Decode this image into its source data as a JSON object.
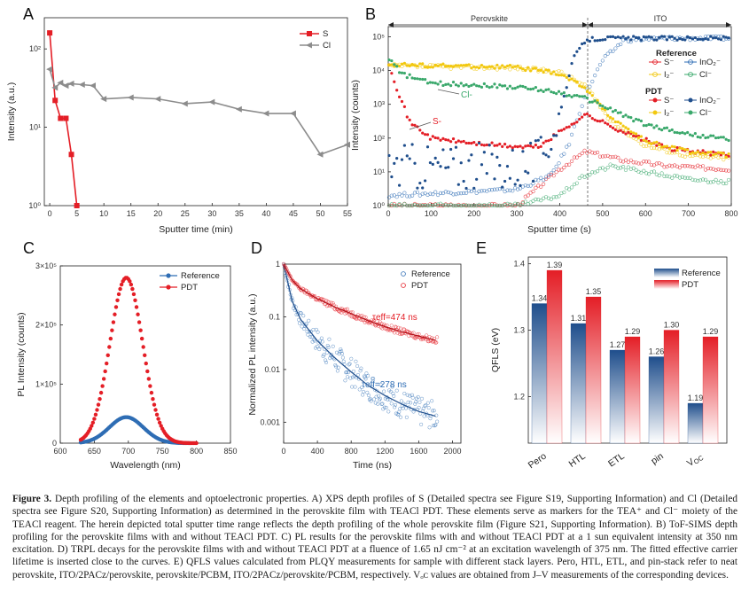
{
  "panels": {
    "a": {
      "letter": "A",
      "xlabel": "Sputter time (min)",
      "ylabel": "Intensity (a.u.)"
    },
    "b": {
      "letter": "B",
      "xlabel": "Sputter time (s)",
      "ylabel": "Intensity (counts)",
      "region_left": "Perovskite",
      "region_right": "ITO",
      "legend_ref_title": "Reference",
      "legend_pdt_title": "PDT",
      "legend_items": [
        "S⁻",
        "InO₂⁻",
        "I₂⁻",
        "Cl⁻"
      ],
      "ann_cl": "Cl-",
      "ann_s": "S-"
    },
    "c": {
      "letter": "C",
      "xlabel": "Wavelength (nm)",
      "ylabel": "PL Intensity (counts)"
    },
    "d": {
      "letter": "D",
      "xlabel": "Time (ns)",
      "ylabel": "Normalized PL intensity (a.u.)",
      "ann_pdt": "τeff=474 ns",
      "ann_ref": "τeff=278 ns"
    },
    "e": {
      "letter": "E",
      "ylabel": "QFLS (eV)"
    }
  },
  "colors": {
    "red": "#e41e26",
    "blue": "#2e6db4",
    "gray": "#8c8c8c",
    "yellow": "#f2c80f",
    "green": "#3aa86b",
    "navy": "#1f4e8c"
  },
  "chart_data": [
    {
      "type": "line",
      "panel": "A",
      "xlabel": "Sputter time (min)",
      "ylabel": "Intensity (a.u.)",
      "xlim": [
        -1,
        55
      ],
      "ylim": [
        1,
        250
      ],
      "yscale": "log",
      "xticks": [
        "0",
        "5",
        "10",
        "15",
        "20",
        "25",
        "30",
        "35",
        "40",
        "45",
        "50",
        "55"
      ],
      "yticks": [
        "10⁰",
        "10¹",
        "10²"
      ],
      "legend_position": "top-right",
      "series": [
        {
          "name": "S",
          "color": "#e41e26",
          "marker": "square",
          "x": [
            0,
            1,
            2,
            3,
            4,
            5
          ],
          "y": [
            160,
            22,
            13,
            13,
            4.5,
            1
          ]
        },
        {
          "name": "Cl",
          "color": "#8c8c8c",
          "marker": "triangle-left",
          "x": [
            0,
            1,
            2,
            3,
            4,
            6,
            8,
            10,
            15,
            20,
            25,
            30,
            35,
            40,
            45,
            50,
            55
          ],
          "y": [
            55,
            32,
            37,
            34,
            36,
            35,
            34,
            23,
            24,
            23,
            20,
            21,
            17,
            15,
            15,
            4.5,
            6
          ]
        }
      ]
    },
    {
      "type": "line",
      "panel": "B",
      "xlabel": "Sputter time (s)",
      "ylabel": "Intensity (counts)",
      "xlim": [
        0,
        800
      ],
      "ylim": [
        1,
        200000
      ],
      "yscale": "log",
      "xticks": [
        "0",
        "100",
        "200",
        "300",
        "400",
        "500",
        "600",
        "700",
        "800"
      ],
      "yticks": [
        "10⁰",
        "10¹",
        "10²",
        "10³",
        "10⁴",
        "10⁵"
      ],
      "legend_position": "top-right",
      "series": [
        {
          "name": "S⁻ (Reference)",
          "color": "#e41e26",
          "style": "open",
          "x": [
            0,
            100,
            200,
            300,
            400,
            460,
            550,
            650,
            800
          ],
          "y": [
            1,
            1,
            1,
            1,
            12,
            40,
            22,
            15,
            12
          ]
        },
        {
          "name": "InO₂⁻ (Reference)",
          "color": "#2e6db4",
          "style": "open",
          "x": [
            0,
            300,
            380,
            420,
            460,
            500,
            550,
            650,
            800
          ],
          "y": [
            2,
            3,
            8,
            60,
            2000,
            20000,
            80000,
            90000,
            90000
          ]
        },
        {
          "name": "I₂⁻ (Reference)",
          "color": "#f2c80f",
          "style": "open",
          "x": [
            0,
            100,
            200,
            300,
            400,
            460,
            520,
            600,
            700,
            800
          ],
          "y": [
            14000,
            13000,
            12500,
            12000,
            9000,
            3500,
            300,
            60,
            30,
            25
          ]
        },
        {
          "name": "Cl⁻ (Reference)",
          "color": "#3aa86b",
          "style": "open",
          "x": [
            0,
            100,
            200,
            300,
            400,
            460,
            520,
            600,
            700,
            800
          ],
          "y": [
            1,
            1,
            1,
            1,
            2,
            8,
            15,
            10,
            6,
            5
          ]
        },
        {
          "name": "S⁻ (PDT)",
          "color": "#e41e26",
          "style": "filled",
          "x": [
            0,
            20,
            50,
            100,
            200,
            300,
            350,
            400,
            460,
            550,
            650,
            800
          ],
          "y": [
            20000,
            3000,
            300,
            100,
            70,
            55,
            55,
            150,
            500,
            150,
            50,
            30
          ]
        },
        {
          "name": "InO₂⁻ (PDT)",
          "color": "#1f4e8c",
          "style": "filled",
          "x": [
            0,
            100,
            200,
            300,
            350,
            400,
            430,
            460,
            500,
            800
          ],
          "y": [
            15,
            15,
            15,
            15,
            20,
            500,
            20000,
            80000,
            90000,
            90000
          ]
        },
        {
          "name": "I₂⁻ (PDT)",
          "color": "#f2c80f",
          "style": "filled",
          "x": [
            0,
            100,
            200,
            300,
            400,
            460,
            520,
            600,
            700,
            800
          ],
          "y": [
            15000,
            14000,
            13500,
            12500,
            8000,
            3000,
            400,
            80,
            40,
            30
          ]
        },
        {
          "name": "Cl⁻ (PDT)",
          "color": "#3aa86b",
          "style": "filled",
          "x": [
            0,
            30,
            100,
            200,
            300,
            380,
            460,
            520,
            600,
            700,
            800
          ],
          "y": [
            25000,
            8000,
            4200,
            3800,
            3200,
            2500,
            1500,
            700,
            250,
            130,
            90
          ]
        }
      ]
    },
    {
      "type": "line",
      "panel": "C",
      "xlabel": "Wavelength (nm)",
      "ylabel": "PL Intensity (counts)",
      "xlim": [
        600,
        850
      ],
      "ylim": [
        0,
        300000
      ],
      "xticks": [
        "600",
        "650",
        "700",
        "750",
        "800",
        "850"
      ],
      "yticks": [
        "0",
        "1×10⁵",
        "2×10⁵",
        "3×10⁵"
      ],
      "legend_position": "top-right",
      "series": [
        {
          "name": "Reference",
          "color": "#2e6db4",
          "peak_x": 697,
          "peak_y": 44000,
          "x_start": 630,
          "x_end": 790
        },
        {
          "name": "PDT",
          "color": "#e41e26",
          "peak_x": 697,
          "peak_y": 280000,
          "x_start": 630,
          "x_end": 800
        }
      ]
    },
    {
      "type": "scatter",
      "panel": "D",
      "xlabel": "Time (ns)",
      "ylabel": "Normalized PL intensity (a.u.)",
      "xlim": [
        0,
        2100
      ],
      "ylim": [
        0.0004,
        1
      ],
      "yscale": "log",
      "xticks": [
        "0",
        "400",
        "800",
        "1200",
        "1600",
        "2000"
      ],
      "yticks": [
        "0.001",
        "0.01",
        "0.1",
        "1"
      ],
      "legend_position": "top-right",
      "series": [
        {
          "name": "Reference",
          "color": "#2e6db4",
          "tau_eff_ns": 278,
          "x": [
            0,
            100,
            200,
            400,
            600,
            800,
            1000,
            1200,
            1400,
            1600,
            1800
          ],
          "y": [
            1,
            0.2,
            0.09,
            0.035,
            0.017,
            0.009,
            0.005,
            0.0032,
            0.0022,
            0.0016,
            0.0013
          ]
        },
        {
          "name": "PDT",
          "color": "#e41e26",
          "tau_eff_ns": 474,
          "x": [
            0,
            100,
            200,
            400,
            600,
            800,
            1000,
            1200,
            1400,
            1600,
            1800
          ],
          "y": [
            1,
            0.5,
            0.34,
            0.22,
            0.155,
            0.115,
            0.085,
            0.065,
            0.052,
            0.043,
            0.036
          ]
        }
      ]
    },
    {
      "type": "bar",
      "panel": "E",
      "ylabel": "QFLS (eV)",
      "ylim": [
        1.13,
        1.41
      ],
      "yticks": [
        "1.2",
        "1.3",
        "1.4"
      ],
      "categories": [
        "Pero",
        "HTL",
        "ETL",
        "pin",
        "V_OC"
      ],
      "legend_position": "top-right",
      "series": [
        {
          "name": "Reference",
          "color": "#2e6db4",
          "values": [
            1.34,
            1.31,
            1.27,
            1.26,
            1.19
          ]
        },
        {
          "name": "PDT",
          "color": "#e41e26",
          "values": [
            1.39,
            1.35,
            1.29,
            1.3,
            1.29
          ]
        }
      ]
    }
  ],
  "caption": {
    "label": "Figure 3.",
    "text": "Depth profiling of the elements and optoelectronic properties. A) XPS depth profiles of S (Detailed spectra see Figure S19, Supporting Information) and Cl (Detailed spectra see Figure S20, Supporting Information) as determined in the perovskite film with TEACl PDT. These elements serve as markers for the TEA⁺ and Cl⁻ moiety of the TEACl reagent. The herein depicted total sputter time range reflects the depth profiling of the whole perovskite film (Figure S21, Supporting Information). B) ToF-SIMS depth profiling for the perovskite films with and without TEACl PDT. C) PL results for the perovskite films with and without TEACl PDT at a 1 sun equivalent intensity at 350 nm excitation. D) TRPL decays for the perovskite films with and without TEACl PDT at a fluence of 1.65 nJ cm⁻² at an excitation wavelength of 375 nm. The fitted effective carrier lifetime is inserted close to the curves. E) QFLS values calculated from PLQY measurements for sample with different stack layers. Pero, HTL, ETL, and pin-stack refer to neat perovskite, ITO/2PACz/perovskite, perovskite/PCBM, ITO/2PACz/perovskite/PCBM, respectively. Vₒᴄ values are obtained from J–V measurements of the corresponding devices."
  }
}
